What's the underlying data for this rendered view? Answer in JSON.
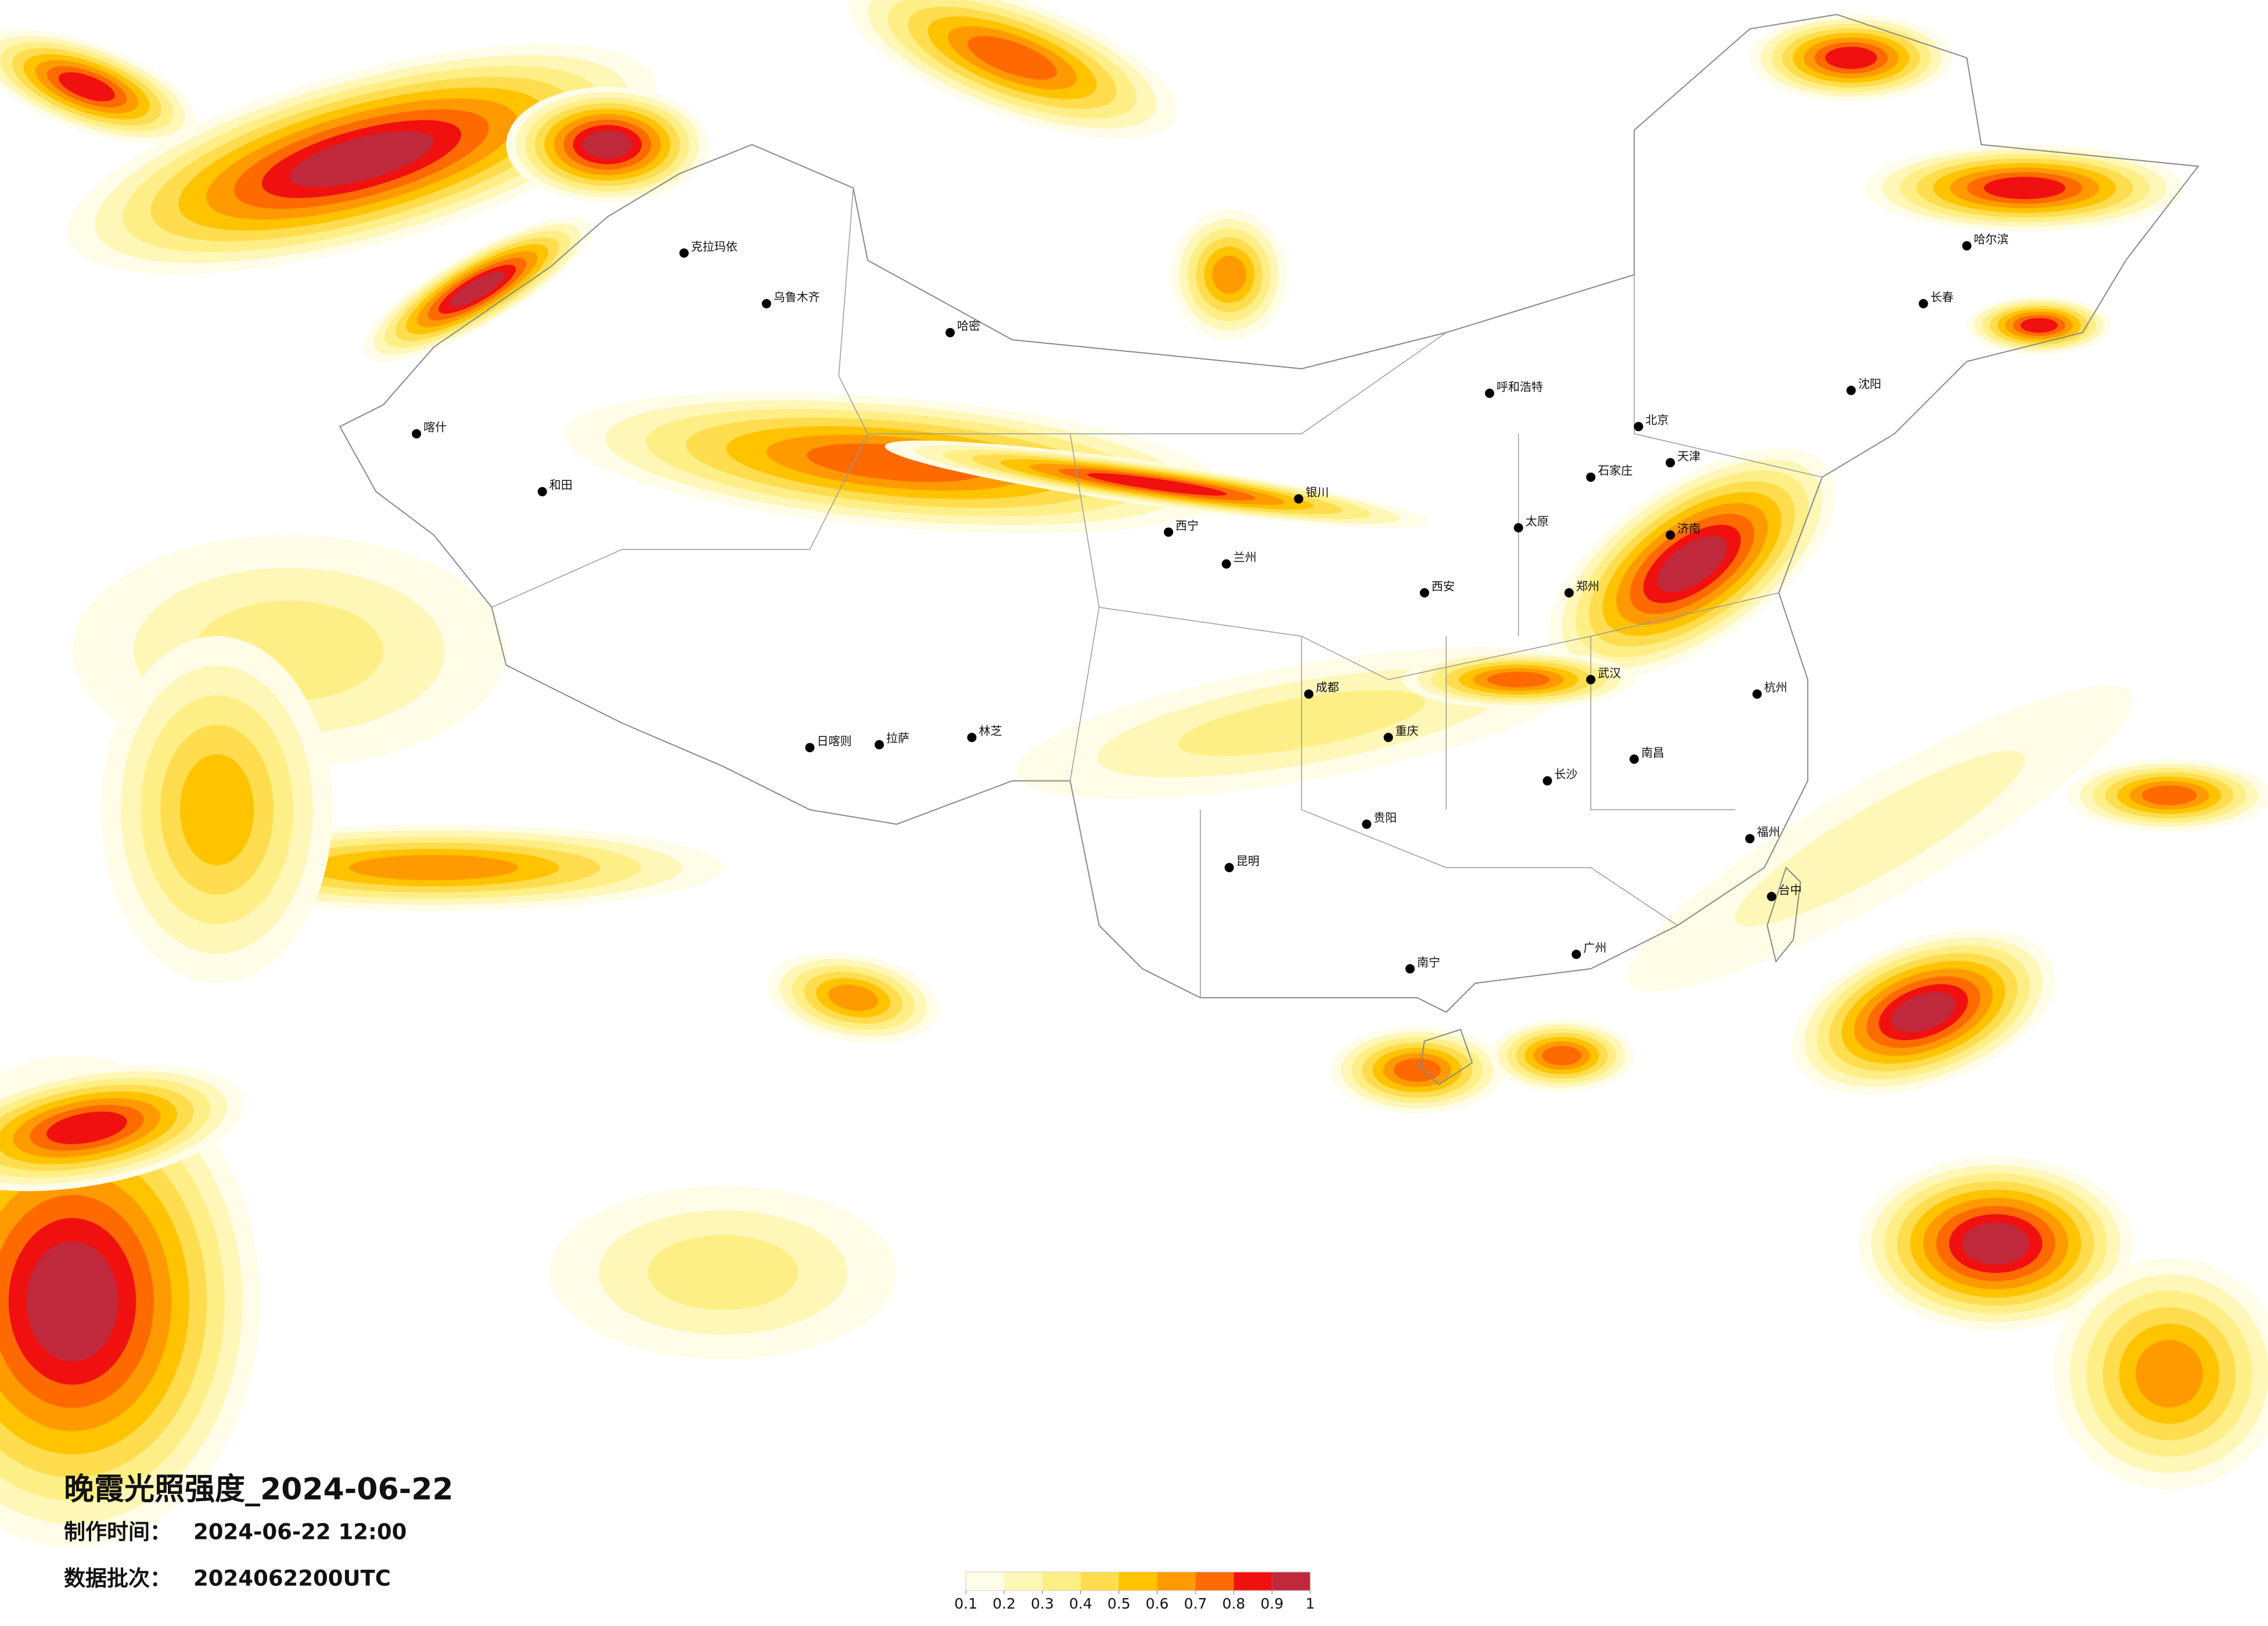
{
  "title": "晚霞光照强度_2024-06-22",
  "info": [
    {
      "label": "制作时间：",
      "value": "2024-06-22 12:00"
    },
    {
      "label": "数据批次：",
      "value": "2024062200UTC"
    }
  ],
  "legend": {
    "colors": [
      "#fffde8",
      "#fff7b8",
      "#ffef86",
      "#ffdd4f",
      "#ffc300",
      "#ff9b00",
      "#ff6a00",
      "#f01010",
      "#c0283c"
    ],
    "ticks": [
      0.1,
      0.2,
      0.3,
      0.4,
      0.5,
      0.6,
      0.7,
      0.8,
      0.9,
      1
    ]
  },
  "cities": [
    "喀什",
    "克拉玛依",
    "乌鲁木齐",
    "哈密",
    "和田",
    "拉萨",
    "日喀则",
    "林芝",
    "西宁",
    "兰州",
    "银川",
    "呼和浩特",
    "北京",
    "天津",
    "石家庄",
    "太原",
    "济南",
    "郑州",
    "西安",
    "成都",
    "重庆",
    "武汉",
    "长沙",
    "南昌",
    "杭州",
    "福州",
    "广州",
    "南宁",
    "贵阳",
    "昆明",
    "哈尔滨",
    "长春",
    "沈阳",
    "台中"
  ]
}
